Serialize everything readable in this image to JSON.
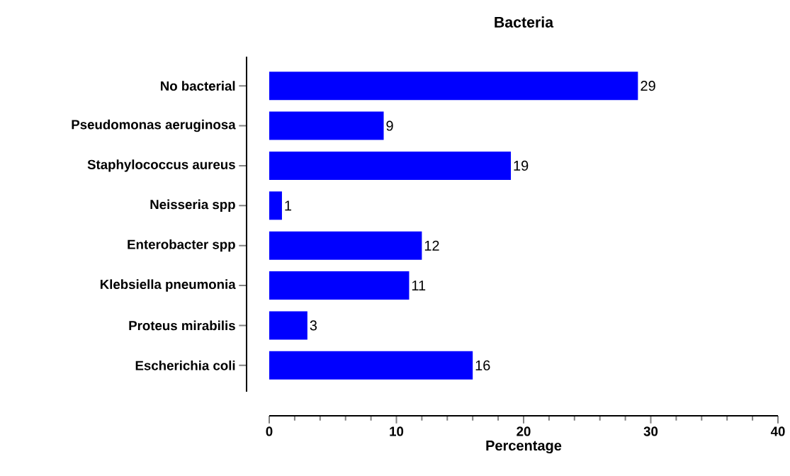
{
  "chart_data": {
    "type": "bar",
    "orientation": "horizontal",
    "title": "Bacteria",
    "xlabel": "Percentage",
    "categories": [
      "No bacterial",
      "Pseudomonas aeruginosa",
      "Staphylococcus aureus",
      "Neisseria spp",
      "Enterobacter spp",
      "Klebsiella pneumonia",
      "Proteus mirabilis",
      "Escherichia coli"
    ],
    "values": [
      29,
      9,
      19,
      1,
      12,
      11,
      3,
      16
    ],
    "color": "#0000ff",
    "xlim": [
      0,
      40
    ],
    "xticks": [
      0,
      10,
      20,
      30,
      40
    ],
    "grid": false,
    "data_labels": true
  }
}
